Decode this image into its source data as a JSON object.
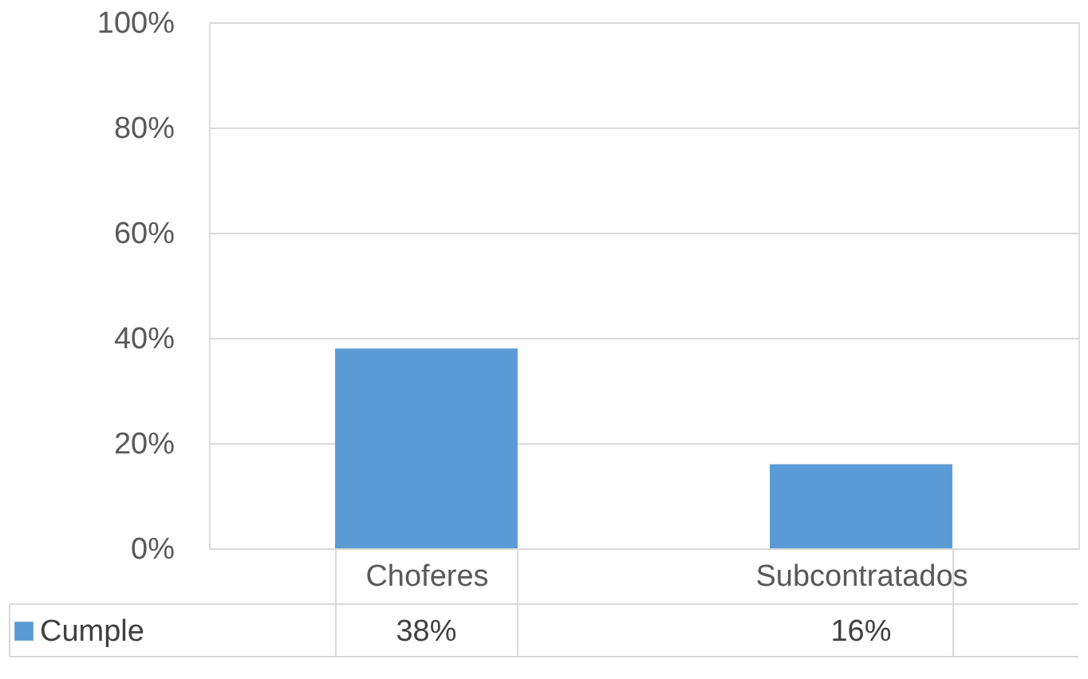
{
  "chart_data": {
    "type": "bar",
    "categories": [
      "Choferes",
      "Subcontratados"
    ],
    "series": [
      {
        "name": "Cumple",
        "color": "#5b9bd5",
        "values": [
          38,
          16
        ],
        "value_labels": [
          "38%",
          "16%"
        ]
      }
    ],
    "ylim": [
      0,
      100
    ],
    "yticks": [
      {
        "value": 0,
        "label": "0%"
      },
      {
        "value": 20,
        "label": "20%"
      },
      {
        "value": 40,
        "label": "40%"
      },
      {
        "value": 60,
        "label": "60%"
      },
      {
        "value": 80,
        "label": "80%"
      },
      {
        "value": 100,
        "label": "100%"
      }
    ],
    "grid": "y",
    "legend": "bottom left"
  }
}
